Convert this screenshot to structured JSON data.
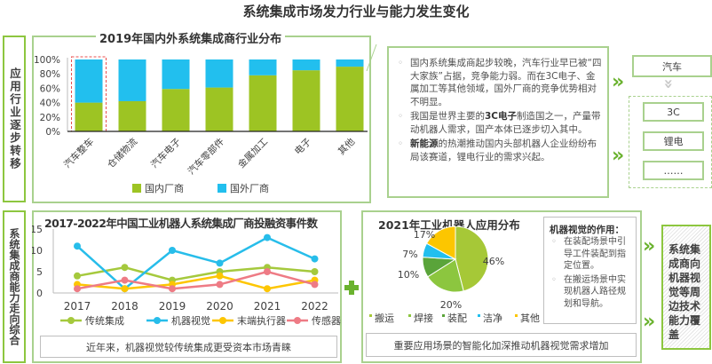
{
  "title": "系统集成市场发力行业与能力发生变化",
  "section1": {
    "label": "应用行业逐步转移"
  },
  "section2": {
    "label": "系统集成商能力走向综合"
  },
  "bar_chart": {
    "title": "2019年国内外系统集成商行业分布"
  },
  "line_chart": {
    "title": "2017-2022年中国工业机器人系统集成厂商投融资事件数",
    "caption": "近年来，机器视觉较传统集成更受资本市场青睐"
  },
  "pie_chart": {
    "title": "2021年工业机器人应用分布",
    "caption": "重要应用场景的智能化加深推动机器视觉需求增加"
  },
  "chart_data": [
    {
      "type": "bar",
      "stacked": true,
      "title": "2019年国内外系统集成商行业分布",
      "categories": [
        "汽车整车",
        "仓储物流",
        "汽车电子",
        "汽车零部件",
        "金属加工",
        "电子",
        "其他"
      ],
      "series": [
        {
          "name": "国内厂商",
          "color": "#9dc423",
          "values": [
            40,
            42,
            59,
            61,
            78,
            85,
            90
          ]
        },
        {
          "name": "国外厂商",
          "color": "#22bfee",
          "values": [
            60,
            58,
            41,
            39,
            22,
            15,
            10
          ]
        }
      ],
      "yticks": [
        "0%",
        "20%",
        "40%",
        "60%",
        "80%",
        "100%"
      ],
      "ylim": [
        0,
        100
      ],
      "legend": "bottom",
      "highlight": "汽车整车"
    },
    {
      "type": "line",
      "title": "2017-2022年中国工业机器人系统集成厂商投融资事件数",
      "x": [
        "2017",
        "2018",
        "2019",
        "2020",
        "2021",
        "2022"
      ],
      "yticks": [
        "0",
        "5",
        "10",
        "15"
      ],
      "ylim": [
        0,
        15
      ],
      "legend": "bottom",
      "series": [
        {
          "name": "传统集成",
          "color": "#a5c93d",
          "values": [
            4,
            6,
            3,
            5,
            6,
            5
          ]
        },
        {
          "name": "机器视觉",
          "color": "#27bdea",
          "values": [
            11,
            1,
            10,
            7,
            13,
            8
          ]
        },
        {
          "name": "末端执行器",
          "color": "#fdc602",
          "values": [
            2,
            1,
            2,
            4,
            1,
            3
          ]
        },
        {
          "name": "传感器",
          "color": "#ee7b85",
          "values": [
            1,
            3,
            1,
            2,
            5,
            2
          ]
        }
      ]
    },
    {
      "type": "pie",
      "title": "2021年工业机器人应用分布",
      "legend": "bottom",
      "slices": [
        {
          "name": "搬运",
          "value": 46,
          "label": "46%",
          "color": "#a6c837"
        },
        {
          "name": "焊接",
          "value": 20,
          "label": "20%",
          "color": "#8cc63f"
        },
        {
          "name": "装配",
          "value": 10,
          "label": "10%",
          "color": "#5aa43a"
        },
        {
          "name": "洁净",
          "value": 7,
          "label": "7%",
          "color": "#22bfee"
        },
        {
          "name": "其他",
          "value": 17,
          "label": "17%",
          "color": "#fcc600"
        }
      ]
    }
  ],
  "callout": {
    "items": [
      {
        "text": "国内系统集成商起步较晚，汽车行业早已被“四大家族”占据，竞争能力弱。而在3C电子、金属加工等其他领域，国外厂商的竞争优势相对不明显。"
      },
      {
        "pre": "我国是世界主要的",
        "bold": "3C电子",
        "text": "制造国之一，产量带动机器人需求，国产本体已逐步切入其中。"
      },
      {
        "bold": "新能源",
        "text": "的热潮推动国内头部机器人企业纷纷布局该赛道，锂电行业的需求兴起。"
      }
    ]
  },
  "industries": {
    "from": "汽车",
    "to": [
      "3C",
      "锂电",
      "……"
    ]
  },
  "vision_box": {
    "title": "机器视觉的作用：",
    "items": [
      "在装配场景中引导工件装配到指定位置。",
      "在搬运场景中实现机器人路径规划和导航。"
    ]
  },
  "conclusion": "系统集成商向机器视觉等周边技术能力覆盖"
}
